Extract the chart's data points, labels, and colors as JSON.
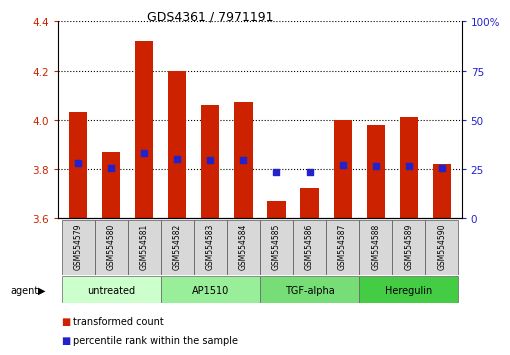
{
  "title": "GDS4361 / 7971191",
  "categories": [
    "GSM554579",
    "GSM554580",
    "GSM554581",
    "GSM554582",
    "GSM554583",
    "GSM554584",
    "GSM554585",
    "GSM554586",
    "GSM554587",
    "GSM554588",
    "GSM554589",
    "GSM554590"
  ],
  "red_values": [
    4.03,
    3.87,
    4.32,
    4.2,
    4.06,
    4.07,
    3.67,
    3.72,
    4.0,
    3.98,
    4.01,
    3.82
  ],
  "blue_values": [
    3.825,
    3.805,
    3.865,
    3.84,
    3.835,
    3.835,
    3.785,
    3.787,
    3.815,
    3.81,
    3.812,
    3.805
  ],
  "ymin": 3.6,
  "ymax": 4.4,
  "yticks": [
    3.6,
    3.8,
    4.0,
    4.2,
    4.4
  ],
  "right_yticks": [
    0,
    25,
    50,
    75,
    100
  ],
  "right_ytick_labels": [
    "0",
    "25",
    "50",
    "75",
    "100%"
  ],
  "grid_values": [
    3.8,
    4.0,
    4.2,
    4.4
  ],
  "bar_color": "#cc2200",
  "dot_color": "#2222cc",
  "background_color": "#ffffff",
  "plot_bg_color": "#ffffff",
  "agent_groups": [
    {
      "label": "untreated",
      "start": 0,
      "end": 3,
      "color": "#ccffcc"
    },
    {
      "label": "AP1510",
      "start": 3,
      "end": 6,
      "color": "#99ee99"
    },
    {
      "label": "TGF-alpha",
      "start": 6,
      "end": 9,
      "color": "#77dd77"
    },
    {
      "label": "Heregulin",
      "start": 9,
      "end": 12,
      "color": "#44cc44"
    }
  ],
  "legend_items": [
    {
      "label": "transformed count",
      "color": "#cc2200"
    },
    {
      "label": "percentile rank within the sample",
      "color": "#2222cc"
    }
  ],
  "ylabel_color_left": "#cc2200",
  "ylabel_color_right": "#2222cc",
  "bar_width": 0.55,
  "dot_size": 18
}
